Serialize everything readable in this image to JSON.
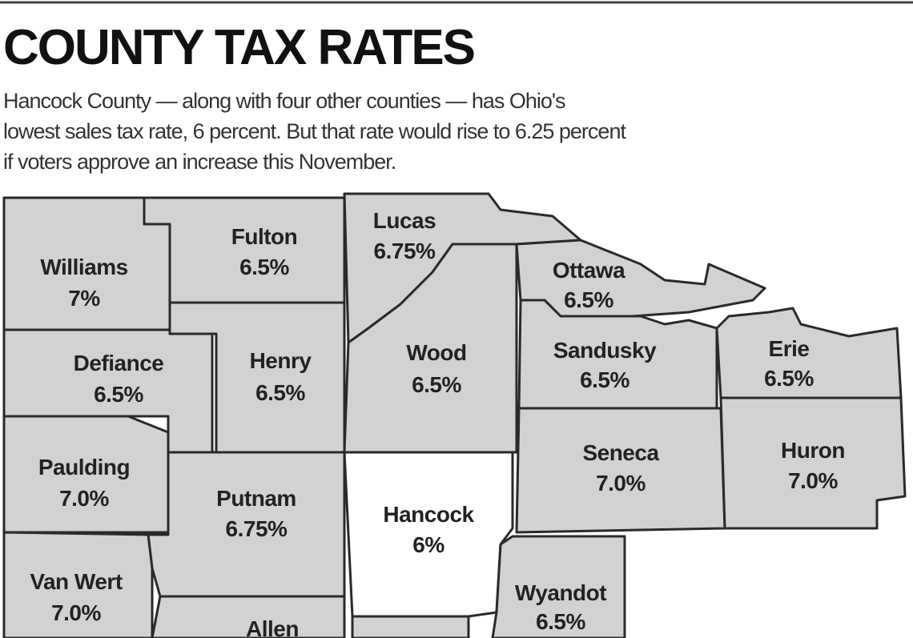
{
  "header": {
    "title": "COUNTY TAX RATES",
    "description": [
      "Hancock County — along with four other counties — has Ohio's",
      "lowest sales tax rate, 6 percent. But that rate would rise to 6.25 percent",
      "if voters approve an increase this November."
    ]
  },
  "map": {
    "counties": [
      {
        "name": "Williams",
        "rate": "7%"
      },
      {
        "name": "Fulton",
        "rate": "6.5%"
      },
      {
        "name": "Lucas",
        "rate": "6.75%"
      },
      {
        "name": "Ottawa",
        "rate": "6.5%"
      },
      {
        "name": "Defiance",
        "rate": "6.5%"
      },
      {
        "name": "Henry",
        "rate": "6.5%"
      },
      {
        "name": "Wood",
        "rate": "6.5%"
      },
      {
        "name": "Sandusky",
        "rate": "6.5%"
      },
      {
        "name": "Erie",
        "rate": "6.5%"
      },
      {
        "name": "Paulding",
        "rate": "7.0%"
      },
      {
        "name": "Putnam",
        "rate": "6.75%"
      },
      {
        "name": "Hancock",
        "rate": "6%"
      },
      {
        "name": "Seneca",
        "rate": "7.0%"
      },
      {
        "name": "Huron",
        "rate": "7.0%"
      },
      {
        "name": "Van Wert",
        "rate": "7.0%"
      },
      {
        "name": "Allen"
      },
      {
        "name": "Wyandot",
        "rate": "6.5%"
      }
    ]
  }
}
